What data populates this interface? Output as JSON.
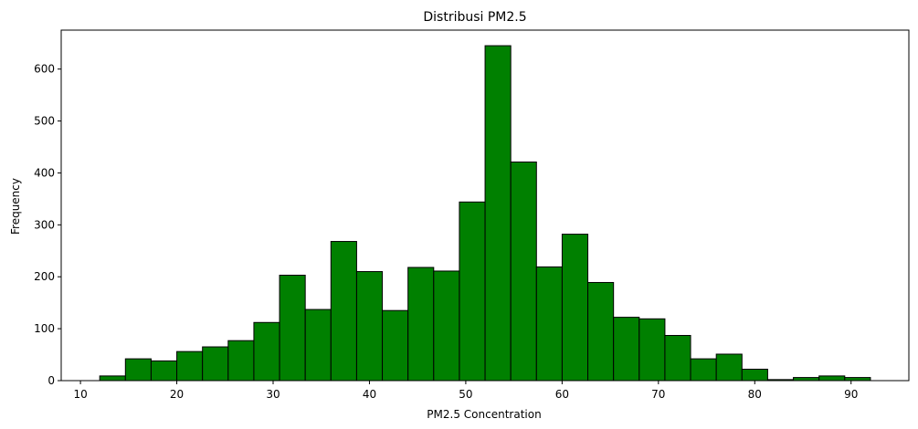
{
  "chart_data": {
    "type": "bar",
    "title": "Distribusi PM2.5",
    "xlabel": "PM2.5 Concentration",
    "ylabel": "Frequency",
    "bin_start": 12,
    "bin_width": 2.667,
    "values": [
      9,
      42,
      38,
      56,
      65,
      77,
      112,
      203,
      137,
      268,
      210,
      135,
      218,
      211,
      344,
      645,
      421,
      219,
      282,
      189,
      122,
      119,
      87,
      42,
      51,
      22,
      2,
      6,
      9,
      6
    ],
    "xlim": [
      8,
      96
    ],
    "ylim": [
      0,
      675
    ],
    "xticks": [
      10,
      20,
      30,
      40,
      50,
      60,
      70,
      80,
      90
    ],
    "yticks": [
      0,
      100,
      200,
      300,
      400,
      500,
      600
    ],
    "bar_color": "#008000",
    "edge_color": "#000000",
    "grid": false
  }
}
